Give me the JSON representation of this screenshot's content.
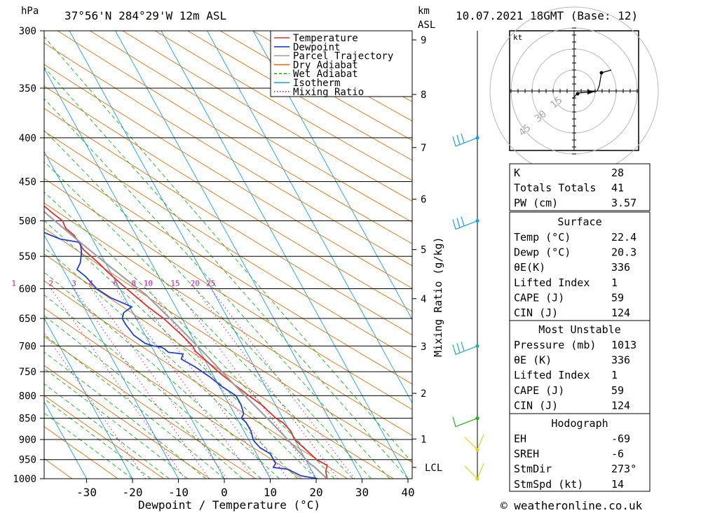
{
  "header": {
    "location": "37°56'N  284°29'W  12m  ASL",
    "datetime": "10.07.2021  18GMT  (Base: 12)",
    "unit_hpa": "hPa",
    "unit_km": "km",
    "unit_asl": "ASL"
  },
  "footer": {
    "copyright": "© weatheronline.co.uk"
  },
  "chart_data": {
    "type": "line",
    "title": "",
    "xlabel": "Dewpoint / Temperature (°C)",
    "ylabel": "hPa",
    "right_axis_label": "Mixing Ratio (g/kg)",
    "xlim": [
      -40,
      40
    ],
    "ylim": [
      1000,
      300
    ],
    "x_ticks": [
      -30,
      -20,
      -10,
      0,
      10,
      20,
      30,
      40
    ],
    "pressure_levels": [
      300,
      350,
      400,
      450,
      500,
      550,
      600,
      650,
      700,
      750,
      800,
      850,
      900,
      950,
      1000
    ],
    "km_ticks": [
      1,
      2,
      3,
      4,
      5,
      6,
      7,
      8,
      9
    ],
    "lcl_label": "LCL",
    "mixing_ratio_labels": [
      "1",
      "2",
      "3",
      "4",
      "6",
      "8",
      "10",
      "15",
      "20",
      "25"
    ],
    "legend_position": "top-right",
    "legend": [
      {
        "name": "Temperature",
        "color": "#e03030",
        "style": "solid"
      },
      {
        "name": "Dewpoint",
        "color": "#2040d0",
        "style": "solid"
      },
      {
        "name": "Parcel Trajectory",
        "color": "#a0a0a0",
        "style": "solid"
      },
      {
        "name": "Dry Adiabat",
        "color": "#e07010",
        "style": "solid"
      },
      {
        "name": "Wet Adiabat",
        "color": "#20b020",
        "style": "dashed"
      },
      {
        "name": "Isotherm",
        "color": "#1aa0e0",
        "style": "solid"
      },
      {
        "name": "Mixing Ratio",
        "color": "#d020a0",
        "style": "dotted"
      }
    ],
    "series": [
      {
        "name": "Temperature",
        "color": "#e03030",
        "points": [
          [
            22.4,
            1000
          ],
          [
            23,
            980
          ],
          [
            24,
            965
          ],
          [
            22.4,
            950
          ],
          [
            21,
            920
          ],
          [
            20,
            900
          ],
          [
            20.2,
            880
          ],
          [
            19.5,
            860
          ],
          [
            18.5,
            850
          ],
          [
            17,
            820
          ],
          [
            15.3,
            800
          ],
          [
            13,
            770
          ],
          [
            11.5,
            750
          ],
          [
            10,
            725
          ],
          [
            9,
            710
          ],
          [
            9,
            700
          ],
          [
            8,
            680
          ],
          [
            6,
            650
          ],
          [
            4,
            630
          ],
          [
            2.5,
            612
          ],
          [
            1.5,
            600
          ],
          [
            -0.5,
            575
          ],
          [
            -1.5,
            560
          ],
          [
            -3.2,
            540
          ],
          [
            -3.5,
            520
          ],
          [
            -4.5,
            510
          ],
          [
            -4.3,
            500
          ],
          [
            -5.5,
            490
          ],
          [
            -6.8,
            478
          ],
          [
            -8.5,
            465
          ],
          [
            -10,
            455
          ],
          [
            -11.5,
            450
          ],
          [
            -11.5,
            440
          ],
          [
            -13,
            425
          ],
          [
            -14.5,
            410
          ],
          [
            -16,
            400
          ],
          [
            -18,
            385
          ],
          [
            -20,
            370
          ],
          [
            -21,
            360
          ],
          [
            -23,
            350
          ],
          [
            -24,
            340
          ],
          [
            -25,
            330
          ],
          [
            -27,
            315
          ],
          [
            -28,
            305
          ],
          [
            -28.5,
            300
          ]
        ]
      },
      {
        "name": "Dewpoint",
        "color": "#2040d0",
        "points": [
          [
            20.3,
            1000
          ],
          [
            17,
            992
          ],
          [
            15,
            975
          ],
          [
            12,
            970
          ],
          [
            13,
            960
          ],
          [
            13,
            950
          ],
          [
            13,
            935
          ],
          [
            11.5,
            920
          ],
          [
            11,
            905
          ],
          [
            11,
            900
          ],
          [
            11.5,
            880
          ],
          [
            11.5,
            860
          ],
          [
            11,
            850
          ],
          [
            12,
            840
          ],
          [
            12.5,
            820
          ],
          [
            12.5,
            800
          ],
          [
            10.5,
            780
          ],
          [
            9,
            760
          ],
          [
            7,
            740
          ],
          [
            5,
            725
          ],
          [
            6,
            715
          ],
          [
            3,
            712
          ],
          [
            2.5,
            705
          ],
          [
            2,
            702
          ],
          [
            0.5,
            700
          ],
          [
            -1,
            695
          ],
          [
            -2.5,
            680
          ],
          [
            -3,
            660
          ],
          [
            -3,
            650
          ],
          [
            -2,
            640
          ],
          [
            0.5,
            630
          ],
          [
            -3,
            615
          ],
          [
            -5,
            600
          ],
          [
            -6,
            580
          ],
          [
            -7,
            570
          ],
          [
            -5.5,
            560
          ],
          [
            -4,
            545
          ],
          [
            -3,
            530
          ],
          [
            -7,
            525
          ],
          [
            -10,
            515
          ],
          [
            -14,
            510
          ],
          [
            -13,
            505
          ],
          [
            -12.5,
            500
          ],
          [
            -17.5,
            497
          ],
          [
            -24,
            490
          ],
          [
            -17,
            470
          ],
          [
            -10,
            458
          ],
          [
            -11,
            454
          ],
          [
            -14,
            450
          ],
          [
            -20,
            420
          ],
          [
            -23,
            400
          ],
          [
            -22.5,
            385
          ],
          [
            -22,
            375
          ],
          [
            -17,
            365
          ],
          [
            -15,
            359
          ],
          [
            -27,
            350
          ],
          [
            -25,
            345
          ],
          [
            -10,
            330
          ],
          [
            -13,
            310
          ],
          [
            -14,
            302
          ],
          [
            -16,
            300
          ]
        ]
      },
      {
        "name": "Parcel Trajectory",
        "color": "#a0a0a0",
        "points": [
          [
            22.4,
            1000
          ],
          [
            21,
            968
          ],
          [
            20.4,
            960
          ],
          [
            19.5,
            930
          ],
          [
            17,
            860
          ],
          [
            14,
            790
          ],
          [
            11,
            720
          ],
          [
            8,
            660
          ],
          [
            5,
            610
          ],
          [
            1,
            570
          ],
          [
            -3,
            530
          ],
          [
            -7,
            490
          ],
          [
            -11,
            450
          ],
          [
            -15,
            420
          ],
          [
            -19,
            390
          ],
          [
            -23,
            360
          ],
          [
            -27,
            330
          ],
          [
            -30,
            300
          ]
        ]
      }
    ],
    "wind_barbs": [
      {
        "pressure": 1000,
        "color": "#e0d020"
      },
      {
        "pressure": 925,
        "color": "#e0d020"
      },
      {
        "pressure": 850,
        "color": "#20b020"
      },
      {
        "pressure": 700,
        "color": "#20b0a0"
      },
      {
        "pressure": 500,
        "color": "#1aa0e0"
      },
      {
        "pressure": 400,
        "color": "#1aa0e0"
      }
    ],
    "hodograph": {
      "unit": "kt",
      "rings": [
        "15",
        "30",
        "45"
      ]
    },
    "indices": {
      "rows": [
        {
          "label": "K",
          "value": "28"
        },
        {
          "label": "Totals Totals",
          "value": "41"
        },
        {
          "label": "PW (cm)",
          "value": "3.57"
        }
      ]
    },
    "surface": {
      "title": "Surface",
      "rows": [
        {
          "label": "Temp (°C)",
          "value": "22.4"
        },
        {
          "label": "Dewp (°C)",
          "value": "20.3"
        },
        {
          "label": "θE(K)",
          "value": "336"
        },
        {
          "label": "Lifted Index",
          "value": "1"
        },
        {
          "label": "CAPE (J)",
          "value": "59"
        },
        {
          "label": "CIN (J)",
          "value": "124"
        }
      ]
    },
    "most_unstable": {
      "title": "Most Unstable",
      "rows": [
        {
          "label": "Pressure (mb)",
          "value": "1013"
        },
        {
          "label": "θE (K)",
          "value": "336"
        },
        {
          "label": "Lifted Index",
          "value": "1"
        },
        {
          "label": "CAPE (J)",
          "value": "59"
        },
        {
          "label": "CIN (J)",
          "value": "124"
        }
      ]
    },
    "hodograph_table": {
      "title": "Hodograph",
      "rows": [
        {
          "label": "EH",
          "value": "-69"
        },
        {
          "label": "SREH",
          "value": "-6"
        },
        {
          "label": "StmDir",
          "value": "273°"
        },
        {
          "label": "StmSpd (kt)",
          "value": "14"
        }
      ]
    }
  }
}
